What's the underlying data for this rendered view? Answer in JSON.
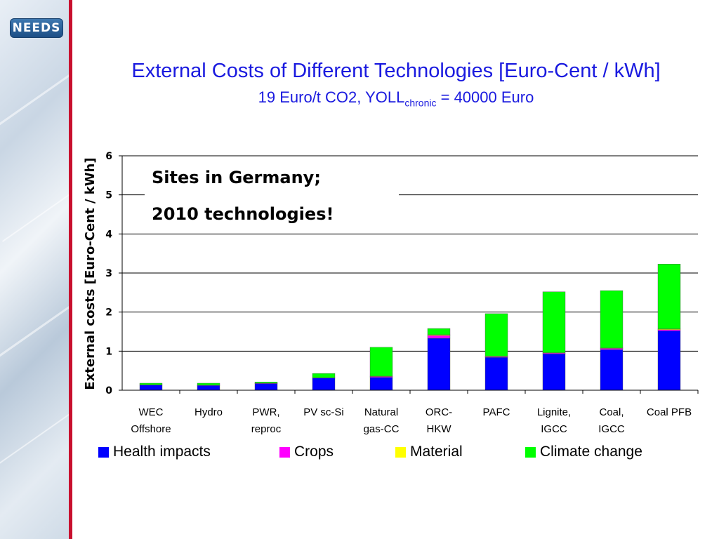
{
  "logo": {
    "text": "NEEDS"
  },
  "title": "External Costs of Different Technologies [Euro-Cent / kWh]",
  "subtitle": {
    "main": "19 Euro/t CO2, YOLL",
    "sub": "chronic",
    "suffix": " = 40000 Euro"
  },
  "annotation": {
    "line1": "Sites in Germany;",
    "line2": "2010 technologies!"
  },
  "chart_data": {
    "type": "bar",
    "stacked": true,
    "ylabel": "External costs [Euro-Cent / kWh]",
    "xlabel": "",
    "ylim": [
      0,
      6
    ],
    "yticks": [
      0,
      1,
      2,
      3,
      4,
      5,
      6
    ],
    "grid": true,
    "legend_position": "bottom",
    "categories": [
      [
        "WEC",
        "Offshore"
      ],
      [
        "Hydro"
      ],
      [
        "PWR,",
        "reproc"
      ],
      [
        "PV sc-Si"
      ],
      [
        "Natural",
        "gas-CC"
      ],
      [
        "ORC-",
        "HKW"
      ],
      [
        "PAFC"
      ],
      [
        "Lignite,",
        "IGCC"
      ],
      [
        "Coal,",
        "IGCC"
      ],
      [
        "Coal PFB"
      ]
    ],
    "series": [
      {
        "name": "Health impacts",
        "color": "#0000ff",
        "values": [
          0.13,
          0.12,
          0.17,
          0.31,
          0.33,
          1.33,
          0.84,
          0.93,
          1.04,
          1.52
        ]
      },
      {
        "name": "Crops",
        "color": "#ff00ff",
        "values": [
          0.01,
          0.01,
          0.01,
          0.01,
          0.02,
          0.07,
          0.02,
          0.02,
          0.03,
          0.03
        ]
      },
      {
        "name": "Material",
        "color": "#ffff00",
        "values": [
          0.0,
          0.0,
          0.0,
          0.0,
          0.01,
          0.02,
          0.01,
          0.01,
          0.01,
          0.02
        ]
      },
      {
        "name": "Climate change",
        "color": "#00ff00",
        "values": [
          0.04,
          0.05,
          0.03,
          0.11,
          0.74,
          0.16,
          1.09,
          1.56,
          1.47,
          1.66
        ]
      }
    ]
  }
}
